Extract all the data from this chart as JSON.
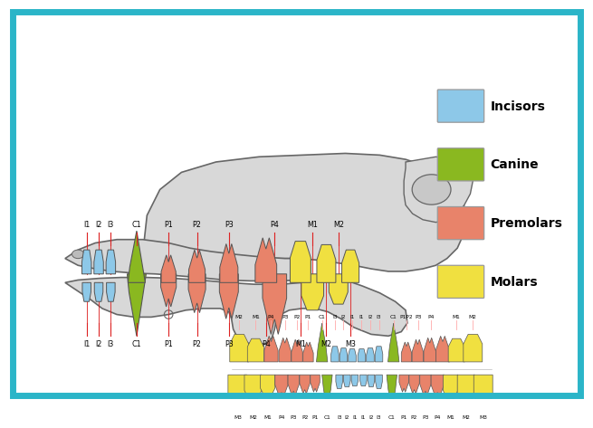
{
  "bg_color": "#ffffff",
  "border_color": "#2bb5c8",
  "border_width": 5,
  "skull_color": "#d8d8d8",
  "skull_edge": "#666666",
  "tooth_edge": "#555555",
  "line_color": "#dd2222",
  "colors": {
    "incisor": "#8dc8e8",
    "canine": "#8ab820",
    "premolar": "#e8836a",
    "molar": "#f0e040"
  },
  "legend": [
    {
      "label": "Incisors",
      "color": "#8dc8e8"
    },
    {
      "label": "Canine",
      "color": "#8ab820"
    },
    {
      "label": "Premolars",
      "color": "#e8836a"
    },
    {
      "label": "Molars",
      "color": "#f0e040"
    }
  ],
  "upper_labels": [
    [
      "I1",
      0.122
    ],
    [
      "I2",
      0.138
    ],
    [
      "I3",
      0.154
    ],
    [
      "C1",
      0.183
    ],
    [
      "P1",
      0.225
    ],
    [
      "P2",
      0.258
    ],
    [
      "P3",
      0.298
    ],
    [
      "P4",
      0.358
    ],
    [
      "M1",
      0.408
    ],
    [
      "M2",
      0.435
    ]
  ],
  "lower_labels": [
    [
      "I1",
      0.122
    ],
    [
      "I2",
      0.138
    ],
    [
      "I3",
      0.154
    ],
    [
      "C1",
      0.183
    ],
    [
      "P1",
      0.225
    ],
    [
      "P2",
      0.258
    ],
    [
      "P3",
      0.298
    ],
    [
      "P4",
      0.346
    ],
    [
      "M1",
      0.395
    ],
    [
      "M2",
      0.426
    ],
    [
      "M3",
      0.455
    ]
  ],
  "arch1_labels_top": [
    [
      "M2",
      0.268
    ],
    [
      "M1",
      0.285
    ],
    [
      "P4",
      0.305
    ],
    [
      "P3",
      0.323
    ],
    [
      "P2",
      0.338
    ],
    [
      "P1",
      0.35
    ],
    [
      "C1",
      0.365
    ],
    [
      "I3",
      0.379
    ],
    [
      "I2",
      0.389
    ],
    [
      "I1",
      0.399
    ],
    [
      "I1",
      0.411
    ],
    [
      "I2",
      0.421
    ],
    [
      "I3",
      0.431
    ],
    [
      "C1",
      0.447
    ],
    [
      "P1P2",
      0.461
    ],
    [
      "P3",
      0.475
    ],
    [
      "P4",
      0.491
    ],
    [
      "M1",
      0.506
    ],
    [
      "M2",
      0.521
    ]
  ],
  "arch2_labels_bot": [
    [
      "M3",
      0.265
    ],
    [
      "M2",
      0.281
    ],
    [
      "M1",
      0.297
    ],
    [
      "P4",
      0.315
    ],
    [
      "P3",
      0.329
    ],
    [
      "P2",
      0.342
    ],
    [
      "P1",
      0.354
    ],
    [
      "C1",
      0.368
    ],
    [
      "I3",
      0.38
    ],
    [
      "I2",
      0.39
    ],
    [
      "I1",
      0.4
    ],
    [
      "I1",
      0.411
    ],
    [
      "I2",
      0.421
    ],
    [
      "I3",
      0.431
    ],
    [
      "C1",
      0.446
    ],
    [
      "P1",
      0.46
    ],
    [
      "P2",
      0.473
    ],
    [
      "P3",
      0.487
    ],
    [
      "P4",
      0.5
    ],
    [
      "M1",
      0.516
    ],
    [
      "M2",
      0.531
    ],
    [
      "M3",
      0.546
    ]
  ]
}
